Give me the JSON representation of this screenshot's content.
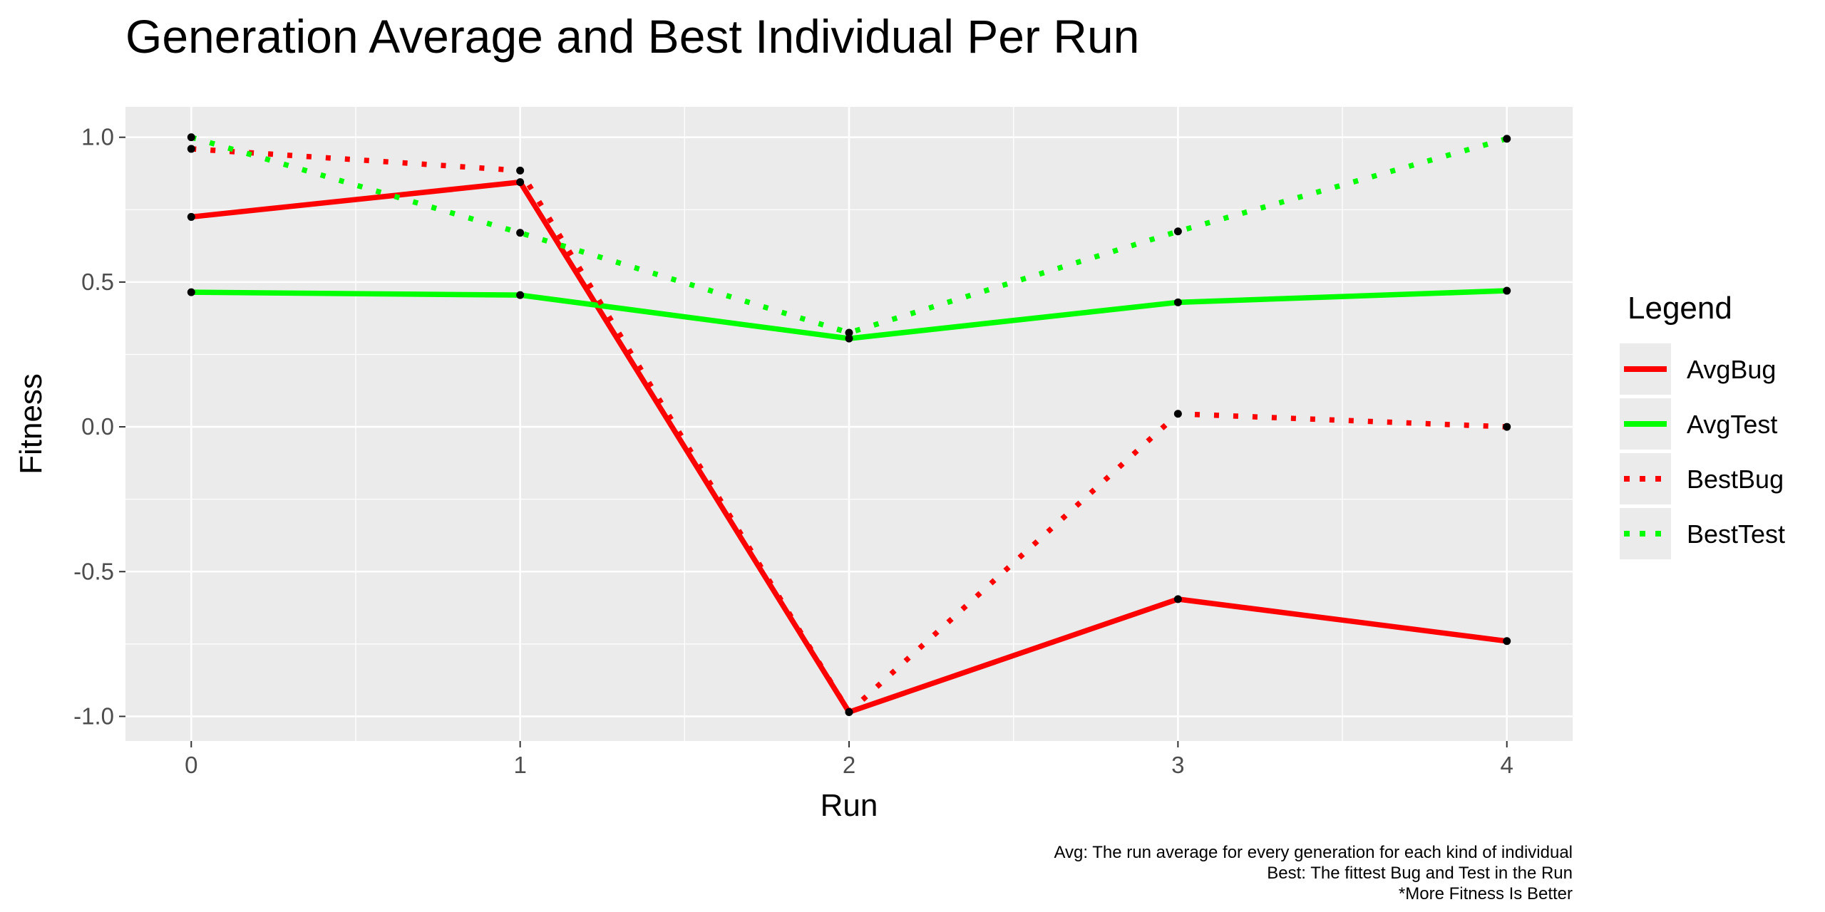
{
  "chart_data": {
    "type": "line",
    "title": "Generation Average and Best Individual Per Run",
    "xlabel": "Run",
    "ylabel": "Fitness",
    "x": [
      0,
      1,
      2,
      3,
      4
    ],
    "xlim": [
      -0.2,
      4.2
    ],
    "ylim": [
      -1.085,
      1.105
    ],
    "x_ticks": [
      0,
      1,
      2,
      3,
      4
    ],
    "x_tick_labels": [
      "0",
      "1",
      "2",
      "3",
      "4"
    ],
    "y_ticks": [
      -1.0,
      -0.5,
      0.0,
      0.5,
      1.0
    ],
    "y_tick_labels": [
      "-1.0",
      "-0.5",
      "0.0",
      "0.5",
      "1.0"
    ],
    "grid": true,
    "legend_title": "Legend",
    "legend_position": "right",
    "series": [
      {
        "name": "AvgBug",
        "color": "#ff0000",
        "linestyle": "solid",
        "values": [
          0.725,
          0.845,
          -0.985,
          -0.595,
          -0.74
        ]
      },
      {
        "name": "AvgTest",
        "color": "#00ff00",
        "linestyle": "solid",
        "values": [
          0.465,
          0.455,
          0.305,
          0.43,
          0.47
        ]
      },
      {
        "name": "BestBug",
        "color": "#ff0000",
        "linestyle": "dotted",
        "values": [
          0.96,
          0.885,
          -0.985,
          0.045,
          0.0
        ]
      },
      {
        "name": "BestTest",
        "color": "#00ff00",
        "linestyle": "dotted",
        "values": [
          1.0,
          0.67,
          0.325,
          0.675,
          0.995
        ]
      }
    ],
    "caption": [
      "Avg: The run average for every generation for each kind of individual",
      "Best: The fittest Bug and Test in the Run",
      "*More Fitness Is Better"
    ]
  }
}
